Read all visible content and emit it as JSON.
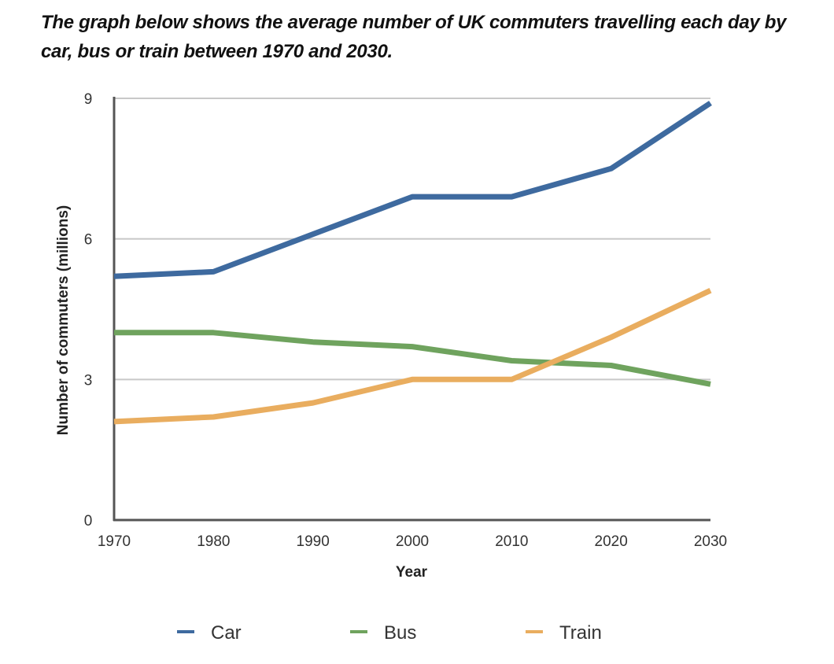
{
  "title": "The graph below shows the average number of UK commuters travelling each day by car, bus or train between 1970 and 2030.",
  "chart_data": {
    "type": "line",
    "title": "The graph below shows the average number of UK commuters travelling each day by car, bus or train between 1970 and 2030.",
    "xlabel": "Year",
    "ylabel": "Number of commuters (millions)",
    "x": [
      1970,
      1980,
      1990,
      2000,
      2010,
      2020,
      2030
    ],
    "x_tick_labels": [
      "1970",
      "1980",
      "1990",
      "2000",
      "2010",
      "2020",
      "2030"
    ],
    "y_ticks": [
      0,
      3,
      6,
      9
    ],
    "y_tick_labels": [
      "0",
      "3",
      "6",
      "9"
    ],
    "ylim": [
      0,
      9
    ],
    "xlim": [
      1970,
      2030
    ],
    "grid": "horizontal",
    "legend_position": "bottom",
    "series": [
      {
        "name": "Car",
        "color": "#3e6a9f",
        "values": [
          5.2,
          5.3,
          6.1,
          6.9,
          6.9,
          7.5,
          8.9
        ]
      },
      {
        "name": "Bus",
        "color": "#6fa35e",
        "values": [
          4.0,
          4.0,
          3.8,
          3.7,
          3.4,
          3.3,
          2.9
        ]
      },
      {
        "name": "Train",
        "color": "#e9ad5f",
        "values": [
          2.1,
          2.2,
          2.5,
          3.0,
          3.0,
          3.9,
          4.9
        ]
      }
    ]
  }
}
